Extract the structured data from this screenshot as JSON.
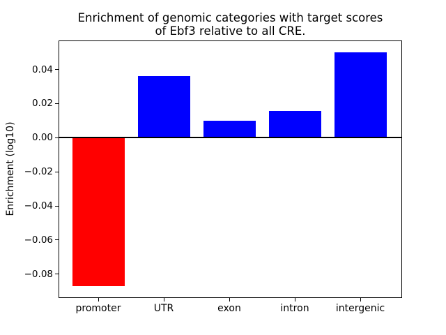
{
  "chart_data": {
    "type": "bar",
    "title": "Enrichment of genomic categories with target scores\nof Ebf3 relative to all CRE.",
    "title_lines": [
      "Enrichment of genomic categories with target scores",
      "of Ebf3 relative to all CRE."
    ],
    "xlabel": "",
    "ylabel": "Enrichment (log10)",
    "categories": [
      "promoter",
      "UTR",
      "exon",
      "intron",
      "intergenic"
    ],
    "values": [
      -0.087,
      0.036,
      0.01,
      0.0155,
      0.05
    ],
    "bar_colors": [
      "#ff0000",
      "#0000ff",
      "#0000ff",
      "#0000ff",
      "#0000ff"
    ],
    "positive_color": "#0000ff",
    "negative_color": "#ff0000",
    "ylim": [
      -0.094,
      0.057
    ],
    "yticks": [
      0.04,
      0.02,
      0.0,
      -0.02,
      -0.04,
      -0.06,
      -0.08
    ],
    "ytick_labels": [
      "0.04",
      "0.02",
      "0.00",
      "−0.02",
      "−0.04",
      "−0.06",
      "−0.08"
    ],
    "zero_line": true,
    "grid": false,
    "legend": "none",
    "axis_color": "#000000",
    "background_color": "#ffffff"
  }
}
